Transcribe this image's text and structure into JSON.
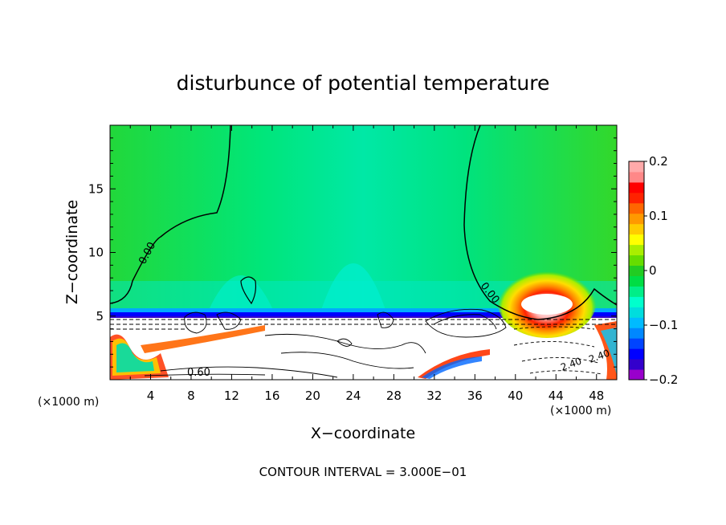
{
  "chart_data": {
    "type": "heatmap",
    "title": "disturbunce of potential temperature",
    "xlabel": "X−coordinate",
    "ylabel": "Z−coordinate",
    "x_unit_left": "(×1000 m)",
    "x_unit_right": "(×1000 m)",
    "footer": "CONTOUR INTERVAL = 3.000E−01",
    "xlim": [
      0,
      50
    ],
    "ylim": [
      0,
      20
    ],
    "x_ticks": [
      4,
      8,
      12,
      16,
      20,
      24,
      28,
      32,
      36,
      40,
      44,
      48
    ],
    "y_ticks": [
      5,
      10,
      15
    ],
    "colorbar": {
      "range": [
        -0.2,
        0.2
      ],
      "tick_values": [
        0.2,
        0.1,
        0,
        -0.1,
        -0.2
      ],
      "tick_labels": [
        "0.2",
        "0.1",
        "0",
        "−0.1",
        "−0.2"
      ],
      "colors": [
        "#9900cc",
        "#3300cc",
        "#0000ff",
        "#0044ff",
        "#0088ff",
        "#00bbff",
        "#00dddd",
        "#00ffcc",
        "#00ee88",
        "#00dd44",
        "#22cc22",
        "#66dd00",
        "#aaee00",
        "#ffff00",
        "#ffcc00",
        "#ff9900",
        "#ff6600",
        "#ff2200",
        "#ff0000",
        "#ff8888",
        "#ffaaaa"
      ]
    },
    "contour_labels": [
      {
        "text": "0.00",
        "x": 7.0,
        "z": 8.5
      },
      {
        "text": "0.00",
        "x": 36.8,
        "z": 6.6
      },
      {
        "text": "0.60",
        "x": 9.5,
        "z": 0.7
      },
      {
        "text": "2.40",
        "x": 48.0,
        "z": 1.6
      },
      {
        "text": "2.40",
        "x": 47.0,
        "z": 1.1
      }
    ],
    "warm_anomaly": {
      "x": 42.5,
      "z": 6.0,
      "max": 0.2
    }
  }
}
